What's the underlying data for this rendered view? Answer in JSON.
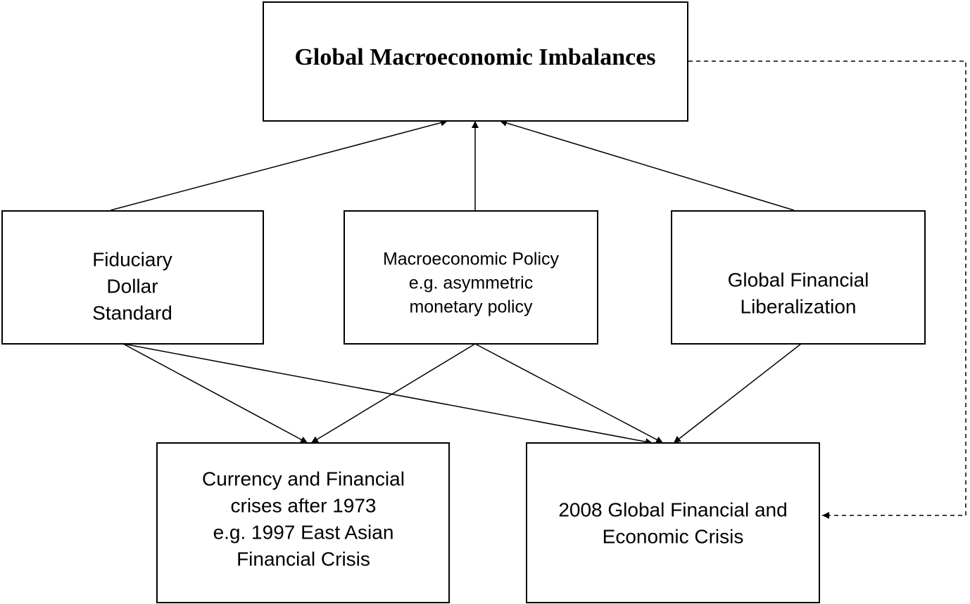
{
  "nodes": [
    {
      "label": [
        "Global Macroeconomic Imbalances"
      ]
    },
    {
      "label": [
        "Fiduciary",
        "Dollar",
        "Standard"
      ]
    },
    {
      "label": [
        "Macroeconomic Policy",
        "e.g. asymmetric",
        "monetary policy"
      ]
    },
    {
      "label": [
        "Global Financial",
        "Liberalization"
      ]
    },
    {
      "label": [
        "Currency and Financial",
        "crises after 1973",
        "e.g. 1997 East Asian",
        "Financial Crisis"
      ]
    },
    {
      "label": [
        "2008 Global Financial and",
        "Economic Crisis"
      ]
    }
  ]
}
